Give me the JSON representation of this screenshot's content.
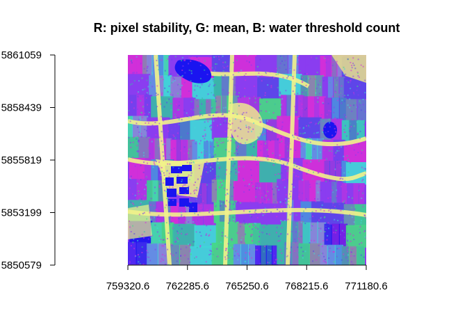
{
  "chart_data": {
    "type": "heatmap",
    "title": "R: pixel stability, G: mean, B: water threshold count",
    "xlabel": "",
    "ylabel": "",
    "bands": {
      "red": "pixel stability",
      "green": "mean",
      "blue": "water threshold count"
    },
    "x_ticks": [
      759320.6,
      762285.6,
      765250.6,
      768215.6,
      771180.6
    ],
    "x_tick_labels": [
      "759320.6",
      "762285.6",
      "765250.6",
      "768215.6",
      "771180.6"
    ],
    "y_ticks": [
      5861059,
      5858439,
      5855819,
      5853199,
      5850579
    ],
    "y_tick_labels": [
      "5861059",
      "5858439",
      "5855819",
      "5853199",
      "5850579"
    ],
    "xlim": [
      759320.6,
      771180.6
    ],
    "ylim": [
      5850579,
      5861059
    ],
    "legend": "none",
    "grid": false
  },
  "palette": {
    "magenta": "#d42fd8",
    "violet": "#8a3df0",
    "blue": "#1a14f0",
    "purple_blue": "#5a45e8",
    "cyan": "#3fd8d8",
    "teal": "#38b8a8",
    "green": "#46d884",
    "yellow": "#f2f28a",
    "khaki": "#e0d890",
    "axis": "#000000"
  }
}
